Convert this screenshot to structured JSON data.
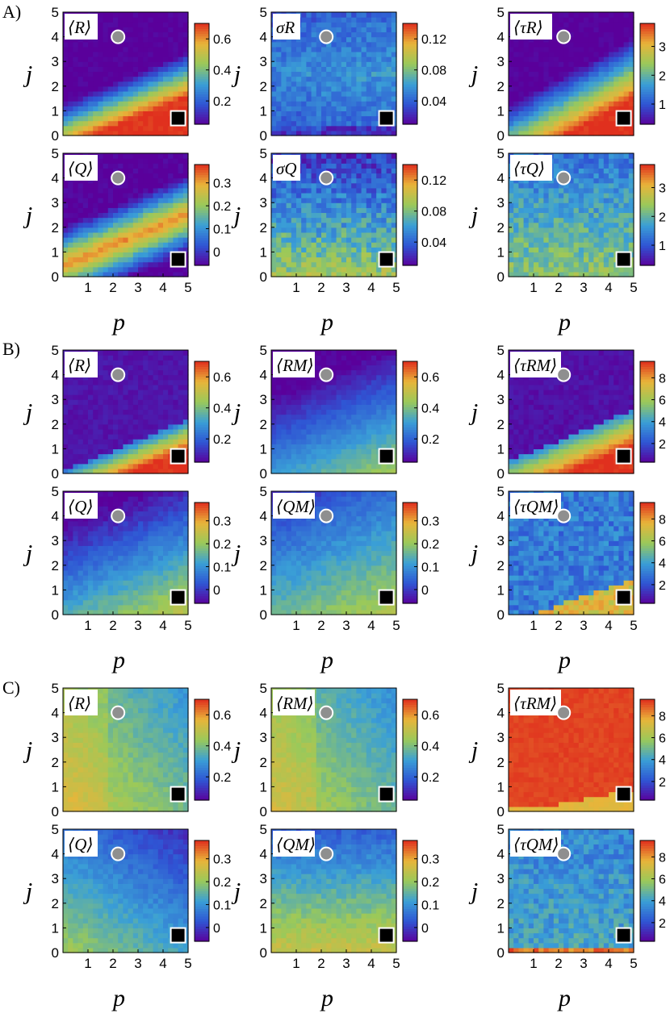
{
  "figure": {
    "marker_circle_color": "#8f8f8f",
    "marker_square_color": "#000000",
    "marker_edge_color": "#ffffff",
    "colormap": [
      "#5a009b",
      "#2f55d4",
      "#3a9fd6",
      "#9ac95a",
      "#e8b53a",
      "#e0301e"
    ]
  },
  "chart_data": [
    {
      "type": "heatmap",
      "panel_label": "A)",
      "title": "⟨R⟩",
      "xlabel": "",
      "ylabel": "j",
      "xlim": [
        0,
        5
      ],
      "ylim": [
        0,
        5
      ],
      "x_ticks": [],
      "y_ticks": [
        "0",
        "1",
        "2",
        "3",
        "4",
        "5"
      ],
      "colorbar_ticks": [
        "0.2",
        "0.4",
        "0.6"
      ],
      "colorbar_tick_positions": [
        0.2,
        0.4,
        0.6
      ],
      "colorbar_range": [
        0.05,
        0.7
      ],
      "markers": {
        "circle": [
          2.2,
          4.0
        ],
        "square": [
          4.6,
          0.7
        ]
      }
    },
    {
      "type": "heatmap",
      "title": "σR",
      "xlabel": "",
      "ylabel": "j",
      "xlim": [
        0,
        5
      ],
      "ylim": [
        0,
        5
      ],
      "x_ticks": [],
      "y_ticks": [
        "0",
        "1",
        "2",
        "3",
        "4",
        "5"
      ],
      "colorbar_ticks": [
        "0.04",
        "0.08",
        "0.12"
      ],
      "colorbar_tick_positions": [
        0.04,
        0.08,
        0.12
      ],
      "colorbar_range": [
        0.01,
        0.14
      ],
      "markers": {
        "circle": [
          2.2,
          4.0
        ],
        "square": [
          4.6,
          0.7
        ]
      }
    },
    {
      "type": "heatmap",
      "title": "⟨τR⟩",
      "xlabel": "",
      "ylabel": "j",
      "xlim": [
        0,
        5
      ],
      "ylim": [
        0,
        5
      ],
      "x_ticks": [],
      "y_ticks": [
        "0",
        "1",
        "2",
        "3",
        "4",
        "5"
      ],
      "colorbar_ticks": [
        "1",
        "2",
        "3"
      ],
      "colorbar_tick_positions": [
        1,
        2,
        3
      ],
      "colorbar_range": [
        0.3,
        3.8
      ],
      "markers": {
        "circle": [
          2.2,
          4.0
        ],
        "square": [
          4.6,
          0.7
        ]
      }
    },
    {
      "type": "heatmap",
      "title": "⟨Q⟩",
      "xlabel": "p",
      "ylabel": "j",
      "xlim": [
        0,
        5
      ],
      "ylim": [
        0,
        5
      ],
      "x_ticks": [
        "1",
        "2",
        "3",
        "4",
        "5"
      ],
      "y_ticks": [
        "0",
        "1",
        "2",
        "3",
        "4",
        "5"
      ],
      "colorbar_ticks": [
        "0",
        "0.1",
        "0.2",
        "0.3"
      ],
      "colorbar_tick_positions": [
        0,
        0.1,
        0.2,
        0.3
      ],
      "colorbar_range": [
        -0.06,
        0.38
      ],
      "markers": {
        "circle": [
          2.2,
          4.0
        ],
        "square": [
          4.6,
          0.7
        ]
      }
    },
    {
      "type": "heatmap",
      "title": "σQ",
      "xlabel": "p",
      "ylabel": "j",
      "xlim": [
        0,
        5
      ],
      "ylim": [
        0,
        5
      ],
      "x_ticks": [
        "1",
        "2",
        "3",
        "4",
        "5"
      ],
      "y_ticks": [
        "0",
        "1",
        "2",
        "3",
        "4",
        "5"
      ],
      "colorbar_ticks": [
        "0.04",
        "0.08",
        "0.12"
      ],
      "colorbar_tick_positions": [
        0.04,
        0.08,
        0.12
      ],
      "colorbar_range": [
        0.01,
        0.14
      ],
      "markers": {
        "circle": [
          2.2,
          4.0
        ],
        "square": [
          4.6,
          0.7
        ]
      }
    },
    {
      "type": "heatmap",
      "title": "⟨τQ⟩",
      "xlabel": "p",
      "ylabel": "j",
      "xlim": [
        0,
        5
      ],
      "ylim": [
        0,
        5
      ],
      "x_ticks": [
        "1",
        "2",
        "3",
        "4",
        "5"
      ],
      "y_ticks": [
        "0",
        "1",
        "2",
        "3",
        "4",
        "5"
      ],
      "colorbar_ticks": [
        "1",
        "2",
        "3"
      ],
      "colorbar_tick_positions": [
        1,
        2,
        3
      ],
      "colorbar_range": [
        0.3,
        3.8
      ],
      "markers": {
        "circle": [
          2.2,
          4.0
        ],
        "square": [
          4.6,
          0.7
        ]
      }
    },
    {
      "type": "heatmap",
      "panel_label": "B)",
      "title": "⟨R⟩",
      "xlabel": "",
      "ylabel": "j",
      "xlim": [
        0,
        5
      ],
      "ylim": [
        0,
        5
      ],
      "x_ticks": [],
      "y_ticks": [
        "0",
        "1",
        "2",
        "3",
        "4",
        "5"
      ],
      "colorbar_ticks": [
        "0.2",
        "0.4",
        "0.6"
      ],
      "colorbar_tick_positions": [
        0.2,
        0.4,
        0.6
      ],
      "colorbar_range": [
        0.05,
        0.7
      ],
      "markers": {
        "circle": [
          2.2,
          4.0
        ],
        "square": [
          4.6,
          0.7
        ]
      }
    },
    {
      "type": "heatmap",
      "title": "⟨RM⟩",
      "xlabel": "",
      "ylabel": "j",
      "xlim": [
        0,
        5
      ],
      "ylim": [
        0,
        5
      ],
      "x_ticks": [],
      "y_ticks": [
        "0",
        "1",
        "2",
        "3",
        "4",
        "5"
      ],
      "colorbar_ticks": [
        "0.2",
        "0.4",
        "0.6"
      ],
      "colorbar_tick_positions": [
        0.2,
        0.4,
        0.6
      ],
      "colorbar_range": [
        0.05,
        0.7
      ],
      "markers": {
        "circle": [
          2.2,
          4.0
        ],
        "square": [
          4.6,
          0.7
        ]
      }
    },
    {
      "type": "heatmap",
      "title": "⟨τRM⟩",
      "xlabel": "",
      "ylabel": "j",
      "xlim": [
        0,
        5
      ],
      "ylim": [
        0,
        5
      ],
      "x_ticks": [],
      "y_ticks": [
        "0",
        "1",
        "2",
        "3",
        "4",
        "5"
      ],
      "colorbar_ticks": [
        "2",
        "4",
        "6",
        "8"
      ],
      "colorbar_tick_positions": [
        2,
        4,
        6,
        8
      ],
      "colorbar_range": [
        0.3,
        9.5
      ],
      "markers": {
        "circle": [
          2.2,
          4.0
        ],
        "square": [
          4.6,
          0.7
        ]
      }
    },
    {
      "type": "heatmap",
      "title": "⟨Q⟩",
      "xlabel": "p",
      "ylabel": "j",
      "xlim": [
        0,
        5
      ],
      "ylim": [
        0,
        5
      ],
      "x_ticks": [
        "1",
        "2",
        "3",
        "4",
        "5"
      ],
      "y_ticks": [
        "0",
        "1",
        "2",
        "3",
        "4",
        "5"
      ],
      "colorbar_ticks": [
        "0",
        "0.1",
        "0.2",
        "0.3"
      ],
      "colorbar_tick_positions": [
        0,
        0.1,
        0.2,
        0.3
      ],
      "colorbar_range": [
        -0.06,
        0.38
      ],
      "markers": {
        "circle": [
          2.2,
          4.0
        ],
        "square": [
          4.6,
          0.7
        ]
      }
    },
    {
      "type": "heatmap",
      "title": "⟨QM⟩",
      "xlabel": "p",
      "ylabel": "j",
      "xlim": [
        0,
        5
      ],
      "ylim": [
        0,
        5
      ],
      "x_ticks": [
        "1",
        "2",
        "3",
        "4",
        "5"
      ],
      "y_ticks": [
        "0",
        "1",
        "2",
        "3",
        "4",
        "5"
      ],
      "colorbar_ticks": [
        "0",
        "0.1",
        "0.2",
        "0.3"
      ],
      "colorbar_tick_positions": [
        0,
        0.1,
        0.2,
        0.3
      ],
      "colorbar_range": [
        -0.06,
        0.38
      ],
      "markers": {
        "circle": [
          2.2,
          4.0
        ],
        "square": [
          4.6,
          0.7
        ]
      }
    },
    {
      "type": "heatmap",
      "title": "⟨τQM⟩",
      "xlabel": "p",
      "ylabel": "j",
      "xlim": [
        0,
        5
      ],
      "ylim": [
        0,
        5
      ],
      "x_ticks": [
        "1",
        "2",
        "3",
        "4",
        "5"
      ],
      "y_ticks": [
        "0",
        "1",
        "2",
        "3",
        "4",
        "5"
      ],
      "colorbar_ticks": [
        "2",
        "4",
        "6",
        "8"
      ],
      "colorbar_tick_positions": [
        2,
        4,
        6,
        8
      ],
      "colorbar_range": [
        0.3,
        9.5
      ],
      "markers": {
        "circle": [
          2.2,
          4.0
        ],
        "square": [
          4.6,
          0.7
        ]
      }
    },
    {
      "type": "heatmap",
      "panel_label": "C)",
      "title": "⟨R⟩",
      "xlabel": "",
      "ylabel": "j",
      "xlim": [
        0,
        5
      ],
      "ylim": [
        0,
        5
      ],
      "x_ticks": [],
      "y_ticks": [
        "0",
        "1",
        "2",
        "3",
        "4",
        "5"
      ],
      "colorbar_ticks": [
        "0.2",
        "0.4",
        "0.6"
      ],
      "colorbar_tick_positions": [
        0.2,
        0.4,
        0.6
      ],
      "colorbar_range": [
        0.05,
        0.7
      ],
      "markers": {
        "circle": [
          2.2,
          4.0
        ],
        "square": [
          4.6,
          0.7
        ]
      }
    },
    {
      "type": "heatmap",
      "title": "⟨RM⟩",
      "xlabel": "",
      "ylabel": "j",
      "xlim": [
        0,
        5
      ],
      "ylim": [
        0,
        5
      ],
      "x_ticks": [],
      "y_ticks": [
        "0",
        "1",
        "2",
        "3",
        "4",
        "5"
      ],
      "colorbar_ticks": [
        "0.2",
        "0.4",
        "0.6"
      ],
      "colorbar_tick_positions": [
        0.2,
        0.4,
        0.6
      ],
      "colorbar_range": [
        0.05,
        0.7
      ],
      "markers": {
        "circle": [
          2.2,
          4.0
        ],
        "square": [
          4.6,
          0.7
        ]
      }
    },
    {
      "type": "heatmap",
      "title": "⟨τRM⟩",
      "xlabel": "",
      "ylabel": "j",
      "xlim": [
        0,
        5
      ],
      "ylim": [
        0,
        5
      ],
      "x_ticks": [],
      "y_ticks": [
        "0",
        "1",
        "2",
        "3",
        "4",
        "5"
      ],
      "colorbar_ticks": [
        "2",
        "4",
        "6",
        "8"
      ],
      "colorbar_tick_positions": [
        2,
        4,
        6,
        8
      ],
      "colorbar_range": [
        0.3,
        9.5
      ],
      "markers": {
        "circle": [
          2.2,
          4.0
        ],
        "square": [
          4.6,
          0.7
        ]
      }
    },
    {
      "type": "heatmap",
      "title": "⟨Q⟩",
      "xlabel": "p",
      "ylabel": "j",
      "xlim": [
        0,
        5
      ],
      "ylim": [
        0,
        5
      ],
      "x_ticks": [
        "1",
        "2",
        "3",
        "4",
        "5"
      ],
      "y_ticks": [
        "0",
        "1",
        "2",
        "3",
        "4",
        "5"
      ],
      "colorbar_ticks": [
        "0",
        "0.1",
        "0.2",
        "0.3"
      ],
      "colorbar_tick_positions": [
        0,
        0.1,
        0.2,
        0.3
      ],
      "colorbar_range": [
        -0.06,
        0.38
      ],
      "markers": {
        "circle": [
          2.2,
          4.0
        ],
        "square": [
          4.6,
          0.7
        ]
      }
    },
    {
      "type": "heatmap",
      "title": "⟨QM⟩",
      "xlabel": "p",
      "ylabel": "j",
      "xlim": [
        0,
        5
      ],
      "ylim": [
        0,
        5
      ],
      "x_ticks": [
        "1",
        "2",
        "3",
        "4",
        "5"
      ],
      "y_ticks": [
        "0",
        "1",
        "2",
        "3",
        "4",
        "5"
      ],
      "colorbar_ticks": [
        "0",
        "0.1",
        "0.2",
        "0.3"
      ],
      "colorbar_tick_positions": [
        0,
        0.1,
        0.2,
        0.3
      ],
      "colorbar_range": [
        -0.06,
        0.38
      ],
      "markers": {
        "circle": [
          2.2,
          4.0
        ],
        "square": [
          4.6,
          0.7
        ]
      }
    },
    {
      "type": "heatmap",
      "title": "⟨τQM⟩",
      "xlabel": "p",
      "ylabel": "j",
      "xlim": [
        0,
        5
      ],
      "ylim": [
        0,
        5
      ],
      "x_ticks": [
        "1",
        "2",
        "3",
        "4",
        "5"
      ],
      "y_ticks": [
        "0",
        "1",
        "2",
        "3",
        "4",
        "5"
      ],
      "colorbar_ticks": [
        "2",
        "4",
        "6",
        "8"
      ],
      "colorbar_tick_positions": [
        2,
        4,
        6,
        8
      ],
      "colorbar_range": [
        0.3,
        9.5
      ],
      "markers": {
        "circle": [
          2.2,
          4.0
        ],
        "square": [
          4.6,
          0.7
        ]
      }
    }
  ]
}
